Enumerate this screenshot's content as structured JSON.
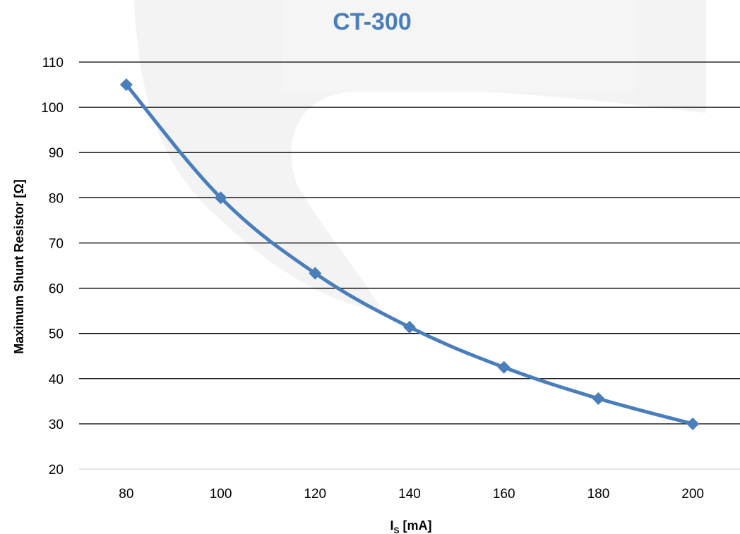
{
  "colors": {
    "series": "#4A7EBB",
    "title": "#4A7EBB",
    "grid": "#000000",
    "watermark": "#F2F2F2"
  },
  "chart_data": {
    "type": "line",
    "title": "CT-300",
    "xlabel_main": "I",
    "xlabel_sub": "S",
    "xlabel_unit": " [mA]",
    "ylabel": "Maximum Shunt Resistor [Ω]",
    "x": [
      80,
      100,
      120,
      140,
      160,
      180,
      200
    ],
    "xlim": [
      70,
      210
    ],
    "ylim": [
      20,
      110
    ],
    "y_ticks": [
      20,
      30,
      40,
      50,
      60,
      70,
      80,
      90,
      100,
      110
    ],
    "x_ticks": [
      80,
      100,
      120,
      140,
      160,
      180,
      200
    ],
    "grid": true,
    "legend": "none",
    "marker": "diamond",
    "series": [
      {
        "values": [
          105,
          80,
          63.3,
          51.4,
          42.5,
          35.6,
          30
        ]
      }
    ]
  }
}
